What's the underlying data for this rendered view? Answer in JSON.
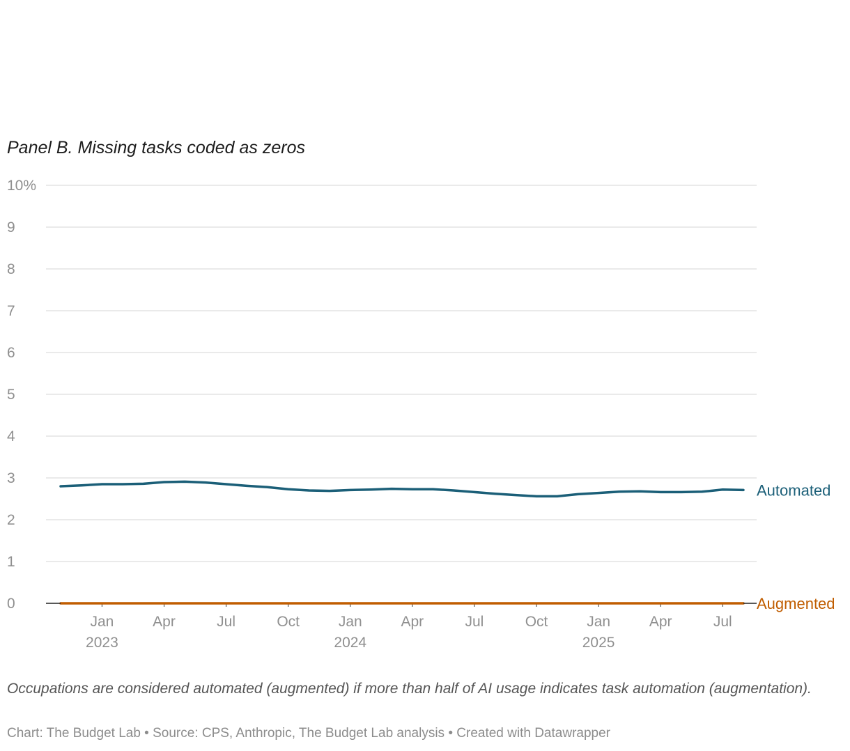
{
  "chart_data": {
    "type": "line",
    "title": "Panel B. Missing tasks coded as zeros",
    "y_unit_suffix": "%",
    "ylim": [
      0,
      10
    ],
    "yticks": [
      0,
      1,
      2,
      3,
      4,
      5,
      6,
      7,
      8,
      9,
      10
    ],
    "x_start": "2022-11",
    "x_end": "2025-08",
    "x_ticks": [
      {
        "date": "2023-01",
        "label": "Jan",
        "year": "2023"
      },
      {
        "date": "2023-04",
        "label": "Apr",
        "year": ""
      },
      {
        "date": "2023-07",
        "label": "Jul",
        "year": ""
      },
      {
        "date": "2023-10",
        "label": "Oct",
        "year": ""
      },
      {
        "date": "2024-01",
        "label": "Jan",
        "year": "2024"
      },
      {
        "date": "2024-04",
        "label": "Apr",
        "year": ""
      },
      {
        "date": "2024-07",
        "label": "Jul",
        "year": ""
      },
      {
        "date": "2024-10",
        "label": "Oct",
        "year": ""
      },
      {
        "date": "2025-01",
        "label": "Jan",
        "year": "2025"
      },
      {
        "date": "2025-04",
        "label": "Apr",
        "year": ""
      },
      {
        "date": "2025-07",
        "label": "Jul",
        "year": ""
      }
    ],
    "x": [
      "2022-11",
      "2022-12",
      "2023-01",
      "2023-02",
      "2023-03",
      "2023-04",
      "2023-05",
      "2023-06",
      "2023-07",
      "2023-08",
      "2023-09",
      "2023-10",
      "2023-11",
      "2023-12",
      "2024-01",
      "2024-02",
      "2024-03",
      "2024-04",
      "2024-05",
      "2024-06",
      "2024-07",
      "2024-08",
      "2024-09",
      "2024-10",
      "2024-11",
      "2024-12",
      "2025-01",
      "2025-02",
      "2025-03",
      "2025-04",
      "2025-05",
      "2025-06",
      "2025-07",
      "2025-08"
    ],
    "series": [
      {
        "name": "Automated",
        "color": "#1b5f78",
        "values": [
          2.8,
          2.82,
          2.85,
          2.85,
          2.86,
          2.9,
          2.91,
          2.89,
          2.85,
          2.81,
          2.78,
          2.73,
          2.7,
          2.69,
          2.71,
          2.72,
          2.74,
          2.73,
          2.73,
          2.7,
          2.66,
          2.62,
          2.59,
          2.56,
          2.56,
          2.61,
          2.64,
          2.67,
          2.68,
          2.66,
          2.66,
          2.67,
          2.72,
          2.71
        ]
      },
      {
        "name": "Augmented",
        "color": "#c05d00",
        "values": [
          0,
          0,
          0,
          0,
          0,
          0,
          0,
          0,
          0,
          0,
          0,
          0,
          0,
          0,
          0,
          0,
          0,
          0,
          0,
          0,
          0,
          0,
          0,
          0,
          0,
          0,
          0,
          0,
          0,
          0,
          0,
          0,
          0,
          0
        ]
      }
    ],
    "grid": true,
    "legend": "direct labels at line ends"
  },
  "note": "Occupations are considered automated (augmented) if more than half of AI usage indicates task automation (augmentation).",
  "credit": "Chart: The Budget Lab • Source: CPS, Anthropic, The Budget Lab analysis • Created with Datawrapper"
}
